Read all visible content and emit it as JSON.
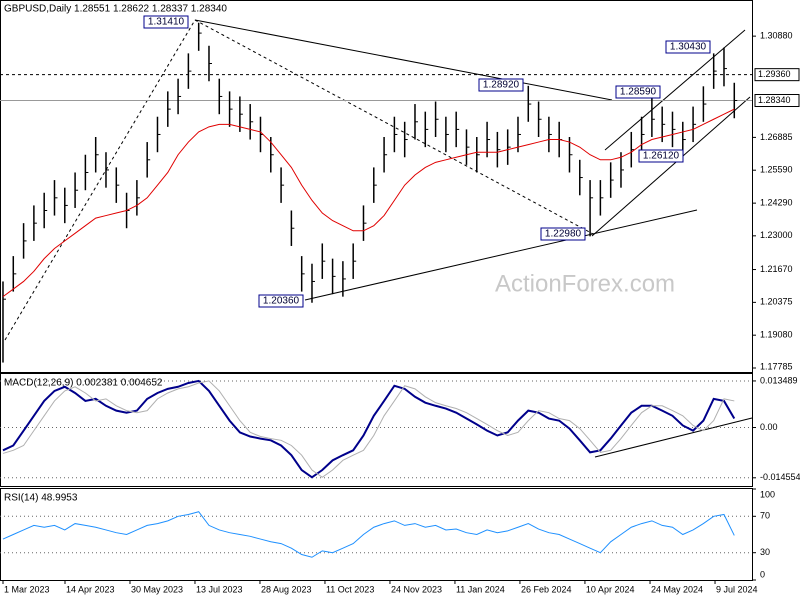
{
  "chart_data": [
    {
      "type": "ohlc",
      "title": "GBPUSD,Daily 1.28551 1.28622 1.28337 1.28340",
      "watermark": "ActionForex.com",
      "color": "#000000",
      "high": [
        1.212,
        1.222,
        1.235,
        1.242,
        1.247,
        1.252,
        1.249,
        1.255,
        1.262,
        1.269,
        1.263,
        1.257,
        1.247,
        1.252,
        1.267,
        1.277,
        1.287,
        1.292,
        1.302,
        1.3141,
        1.305,
        1.292,
        1.287,
        1.285,
        1.282,
        1.277,
        1.269,
        1.257,
        1.24,
        1.222,
        1.219,
        1.227,
        1.221,
        1.22,
        1.227,
        1.242,
        1.257,
        1.269,
        1.277,
        1.275,
        1.282,
        1.279,
        1.283,
        1.277,
        1.279,
        1.272,
        1.269,
        1.275,
        1.271,
        1.272,
        1.277,
        1.2892,
        1.283,
        1.277,
        1.275,
        1.269,
        1.26,
        1.252,
        1.252,
        1.259,
        1.263,
        1.271,
        1.277,
        1.2859,
        1.281,
        1.279,
        1.275,
        1.281,
        1.289,
        1.302,
        1.3043,
        1.2904
      ],
      "low": [
        1.18,
        1.208,
        1.221,
        1.228,
        1.233,
        1.238,
        1.235,
        1.241,
        1.248,
        1.255,
        1.249,
        1.243,
        1.233,
        1.238,
        1.253,
        1.263,
        1.273,
        1.278,
        1.288,
        1.303,
        1.291,
        1.278,
        1.273,
        1.271,
        1.268,
        1.263,
        1.255,
        1.243,
        1.226,
        1.208,
        1.2036,
        1.213,
        1.207,
        1.206,
        1.213,
        1.228,
        1.243,
        1.255,
        1.263,
        1.261,
        1.268,
        1.265,
        1.269,
        1.263,
        1.265,
        1.258,
        1.255,
        1.261,
        1.257,
        1.258,
        1.263,
        1.275,
        1.269,
        1.263,
        1.261,
        1.255,
        1.246,
        1.2298,
        1.238,
        1.245,
        1.249,
        1.257,
        1.263,
        1.269,
        1.267,
        1.265,
        1.2612,
        1.267,
        1.275,
        1.288,
        1.289,
        1.2764
      ],
      "close": [
        1.205,
        1.215,
        1.228,
        1.235,
        1.24,
        1.245,
        1.242,
        1.248,
        1.255,
        1.262,
        1.256,
        1.25,
        1.24,
        1.245,
        1.26,
        1.27,
        1.28,
        1.285,
        1.295,
        1.31,
        1.298,
        1.285,
        1.28,
        1.278,
        1.275,
        1.27,
        1.262,
        1.25,
        1.233,
        1.215,
        1.212,
        1.22,
        1.214,
        1.213,
        1.22,
        1.235,
        1.25,
        1.262,
        1.27,
        1.268,
        1.275,
        1.272,
        1.276,
        1.27,
        1.272,
        1.265,
        1.262,
        1.268,
        1.264,
        1.265,
        1.27,
        1.282,
        1.276,
        1.27,
        1.268,
        1.262,
        1.253,
        1.245,
        1.245,
        1.252,
        1.256,
        1.264,
        1.27,
        1.276,
        1.274,
        1.272,
        1.268,
        1.274,
        1.282,
        1.295,
        1.296,
        1.2834
      ],
      "ma": {
        "color": "#e00000",
        "values": [
          1.206,
          1.209,
          1.212,
          1.216,
          1.221,
          1.225,
          1.228,
          1.231,
          1.234,
          1.237,
          1.238,
          1.239,
          1.24,
          1.242,
          1.245,
          1.25,
          1.255,
          1.262,
          1.267,
          1.271,
          1.273,
          1.274,
          1.274,
          1.273,
          1.272,
          1.271,
          1.267,
          1.262,
          1.257,
          1.25,
          1.244,
          1.239,
          1.236,
          1.234,
          1.232,
          1.232,
          1.234,
          1.238,
          1.244,
          1.25,
          1.254,
          1.257,
          1.259,
          1.26,
          1.261,
          1.262,
          1.263,
          1.263,
          1.263,
          1.264,
          1.265,
          1.266,
          1.267,
          1.268,
          1.268,
          1.267,
          1.265,
          1.262,
          1.26,
          1.26,
          1.261,
          1.263,
          1.266,
          1.268,
          1.269,
          1.27,
          1.271,
          1.272,
          1.274,
          1.276,
          1.278,
          1.28
        ]
      },
      "xlim": [
        -0.29,
        72.72
      ],
      "xticks": [
        {
          "value": 0,
          "label": "1 Mar 2023"
        },
        {
          "value": 6.02,
          "label": "14 Apr 2023"
        },
        {
          "value": 12.33,
          "label": "30 May 2023"
        },
        {
          "value": 18.64,
          "label": "13 Jul 2023"
        },
        {
          "value": 24.95,
          "label": "28 Aug 2023"
        },
        {
          "value": 31.26,
          "label": "11 Oct 2023"
        },
        {
          "value": 37.57,
          "label": "24 Nov 2023"
        },
        {
          "value": 43.88,
          "label": "11 Jan 2024"
        },
        {
          "value": 50.19,
          "label": "26 Feb 2024"
        },
        {
          "value": 56.5,
          "label": "10 Apr 2024"
        },
        {
          "value": 62.82,
          "label": "24 May 2024"
        },
        {
          "value": 69.13,
          "label": "9 Jul 2024"
        }
      ],
      "ylim": [
        1.17627,
        1.32306
      ],
      "yticks": [
        {
          "value": 1.3088,
          "label": "1.30880"
        },
        1.26885,
        {
          "value": 1.2559,
          "label": "1.25590"
        },
        {
          "value": 1.2429,
          "label": "1.24290"
        },
        {
          "value": 1.23,
          "label": "1.23000"
        },
        {
          "value": 1.2167,
          "label": "1.21670"
        },
        1.20375,
        {
          "value": 1.1908,
          "label": "1.19080"
        },
        1.17785
      ],
      "levels": [
        {
          "value": 1.2936,
          "label": "1.29360",
          "style": "dashed"
        },
        {
          "value": 1.2834,
          "label": "1.28340",
          "style": "solid"
        }
      ],
      "annotations": [
        "1.31410",
        "1.20360",
        "1.28920",
        "1.28590",
        "1.30430",
        "1.26120",
        "1.22980"
      ]
    },
    {
      "type": "line",
      "title": "MACD(12,26,9) 0.002381 0.004652",
      "grid": "dotted",
      "series": [
        {
          "color": "#00008b",
          "values": [
            -0.0066,
            -0.0052,
            -0.0009,
            0.0034,
            0.0077,
            0.0106,
            0.0118,
            0.01,
            0.0077,
            0.0083,
            0.0063,
            0.0049,
            0.0043,
            0.0049,
            0.0083,
            0.01,
            0.0112,
            0.0118,
            0.0129,
            0.0135,
            0.0106,
            0.0063,
            0.002,
            -0.0014,
            -0.0026,
            -0.0032,
            -0.0037,
            -0.0052,
            -0.008,
            -0.0123,
            -0.0144,
            -0.0123,
            -0.0095,
            -0.008,
            -0.0066,
            -0.0023,
            0.0034,
            0.0077,
            0.0121,
            0.0112,
            0.0089,
            0.0072,
            0.0063,
            0.0055,
            0.0043,
            0.0026,
            0.0009,
            -0.0009,
            -0.0023,
            -0.0014,
            0.002,
            0.0049,
            0.0043,
            0.0026,
            0.002,
            -0.0003,
            -0.0037,
            -0.0072,
            -0.0066,
            -0.0032,
            0.0006,
            0.0043,
            0.0063,
            0.0063,
            0.0049,
            0.0034,
            0.0006,
            -0.0009,
            0.002,
            0.0083,
            0.0077,
            0.0026
          ]
        },
        {
          "color": "#b0b0b0",
          "values": [
            -0.0075,
            -0.0066,
            -0.0052,
            -0.0009,
            0.0034,
            0.0077,
            0.0106,
            0.0118,
            0.01,
            0.0077,
            0.0083,
            0.0063,
            0.0049,
            0.0043,
            0.0049,
            0.0083,
            0.01,
            0.0112,
            0.0118,
            0.0129,
            0.0135,
            0.0106,
            0.0063,
            0.002,
            -0.0014,
            -0.0026,
            -0.0032,
            -0.0037,
            -0.0052,
            -0.008,
            -0.0123,
            -0.0144,
            -0.0123,
            -0.0095,
            -0.008,
            -0.0066,
            -0.0023,
            0.0034,
            0.0077,
            0.0121,
            0.0112,
            0.0089,
            0.0072,
            0.0063,
            0.0055,
            0.0043,
            0.0026,
            0.0009,
            -0.0009,
            -0.0023,
            -0.0014,
            0.002,
            0.0049,
            0.0043,
            0.0026,
            0.002,
            -0.0003,
            -0.0037,
            -0.0072,
            -0.0066,
            -0.0032,
            0.0006,
            0.0043,
            0.0063,
            0.0063,
            0.0049,
            0.0034,
            0.0006,
            -0.0009,
            0.002,
            0.0083,
            0.0077
          ]
        }
      ],
      "ylim": [
        -0.01693,
        0.0155
      ],
      "yticks": [
        0.013489,
        {
          "value": 0,
          "label": "0.00"
        },
        -0.014554
      ]
    },
    {
      "type": "line",
      "title": "RSI(14) 48.9953",
      "grid": "dotted",
      "series": [
        {
          "color": "#1e90ff",
          "values": [
            45,
            50,
            55,
            60,
            58,
            60,
            55,
            62,
            60,
            58,
            55,
            52,
            50,
            55,
            60,
            62,
            65,
            70,
            72,
            75,
            60,
            55,
            52,
            50,
            48,
            45,
            42,
            40,
            35,
            28,
            25,
            32,
            30,
            35,
            40,
            50,
            58,
            62,
            65,
            60,
            62,
            58,
            60,
            55,
            56,
            52,
            50,
            55,
            52,
            54,
            58,
            62,
            56,
            52,
            50,
            45,
            40,
            35,
            30,
            42,
            50,
            58,
            62,
            65,
            60,
            58,
            50,
            55,
            62,
            70,
            72,
            48.9953
          ]
        }
      ],
      "ylim": [
        0,
        100
      ],
      "yticks": [
        100,
        70,
        30,
        0
      ]
    }
  ]
}
